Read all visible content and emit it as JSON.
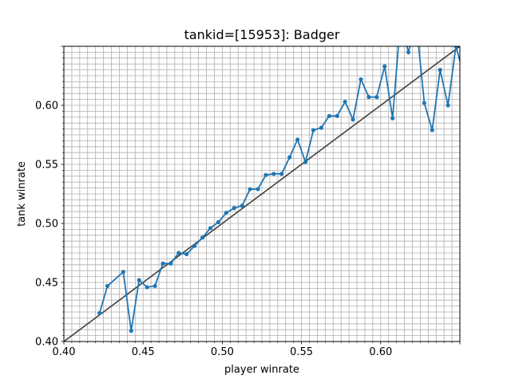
{
  "chart_data": {
    "type": "line",
    "title": "tankid=[15953]: Badger",
    "xlabel": "player winrate",
    "ylabel": "tank winrate",
    "xlim": [
      0.4,
      0.65
    ],
    "ylim": [
      0.4,
      0.65
    ],
    "xticks": [
      0.4,
      0.45,
      0.5,
      0.55,
      0.6
    ],
    "yticks": [
      0.4,
      0.45,
      0.5,
      0.55,
      0.6
    ],
    "xtick_labels": [
      "0.40",
      "0.45",
      "0.50",
      "0.55",
      "0.60"
    ],
    "ytick_labels": [
      "0.40",
      "0.45",
      "0.50",
      "0.55",
      "0.60"
    ],
    "minor_tick_step": 0.005,
    "grid": true,
    "legend": "none",
    "colors": {
      "series": "#1f77b4",
      "reference": "#404040",
      "grid": "#b0b0b0"
    },
    "reference_line": {
      "from": [
        0.4,
        0.4
      ],
      "to": [
        0.65,
        0.65
      ]
    },
    "series": [
      {
        "x": [
          0.4225,
          0.4275,
          0.4375,
          0.4425,
          0.4475,
          0.4525,
          0.4575,
          0.4625,
          0.4675,
          0.4725,
          0.4775,
          0.4825,
          0.4875,
          0.4925,
          0.4975,
          0.5025,
          0.5075,
          0.5125,
          0.5175,
          0.5225,
          0.5275,
          0.5325,
          0.5375,
          0.5425,
          0.5475,
          0.5525,
          0.5575,
          0.5625,
          0.5675,
          0.5725,
          0.5775,
          0.5825,
          0.5875,
          0.5925,
          0.5975,
          0.6025,
          0.6075,
          0.6125,
          0.6175,
          0.6225,
          0.6275,
          0.6325,
          0.6375,
          0.6425,
          0.6475,
          0.6525
        ],
        "values": [
          0.424,
          0.447,
          0.459,
          0.409,
          0.452,
          0.446,
          0.447,
          0.466,
          0.466,
          0.475,
          0.474,
          0.481,
          0.488,
          0.496,
          0.501,
          0.509,
          0.513,
          0.515,
          0.529,
          0.529,
          0.541,
          0.542,
          0.542,
          0.556,
          0.571,
          0.552,
          0.579,
          0.581,
          0.591,
          0.591,
          0.603,
          0.588,
          0.622,
          0.607,
          0.607,
          0.633,
          0.589,
          0.672,
          0.645,
          0.67,
          0.602,
          0.579,
          0.63,
          0.6,
          0.65,
          0.625
        ]
      }
    ]
  }
}
